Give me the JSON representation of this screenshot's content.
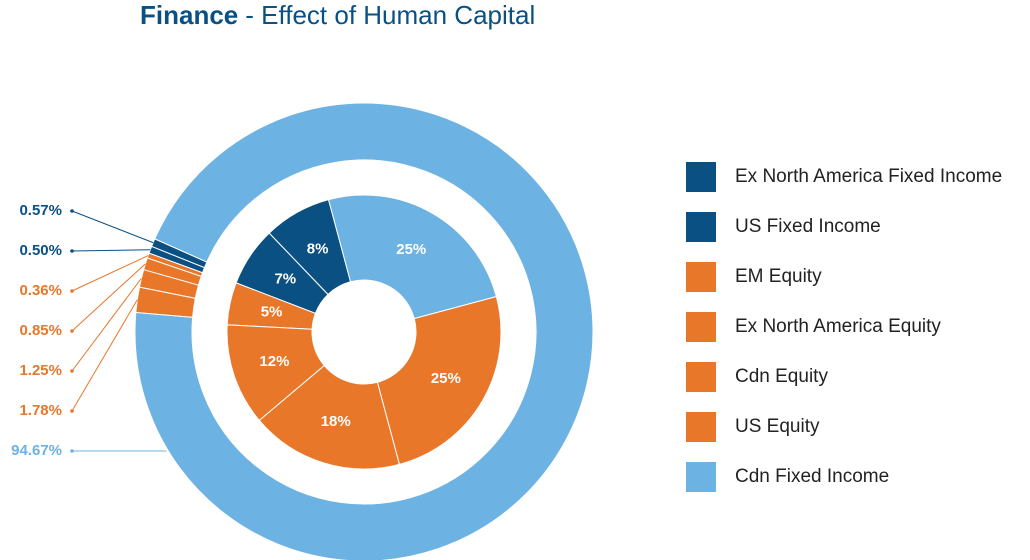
{
  "chart_data": {
    "type": "donut",
    "title": "Finance",
    "subtitle": "- Effect of Human Capital",
    "categories": [
      "Ex North America Fixed Income",
      "US Fixed Income",
      "EM Equity",
      "Ex North America Equity",
      "Cdn Equity",
      "US Equity",
      "Cdn Fixed Income"
    ],
    "colors": [
      "#0a5082",
      "#0a5082",
      "#e8772a",
      "#e8772a",
      "#e8772a",
      "#e8772a",
      "#6cb2e2"
    ],
    "series": [
      {
        "values": [
          0.57,
          0.5,
          0.36,
          0.85,
          1.25,
          1.78,
          94.67
        ],
        "value_labels": [
          "0.57%",
          "0.50%",
          "0.36%",
          "0.85%",
          "1.25%",
          "1.78%",
          "94.67%"
        ]
      },
      {
        "values": [
          8,
          7,
          5,
          12,
          18,
          25,
          25
        ],
        "value_labels": [
          "8%",
          "7%",
          "5%",
          "12%",
          "18%",
          "25%",
          "25%"
        ]
      }
    ]
  }
}
